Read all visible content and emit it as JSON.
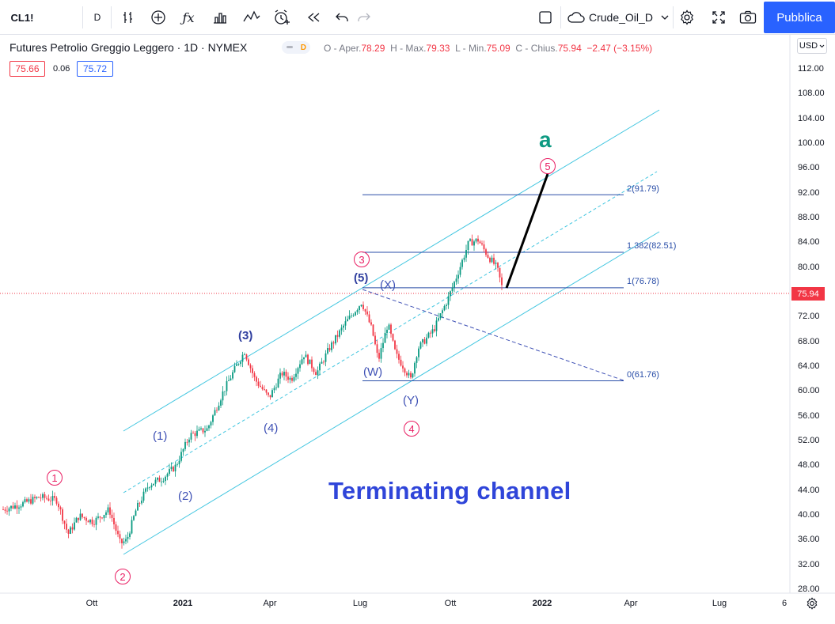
{
  "toolbar": {
    "symbol": "CL1!",
    "interval": "D",
    "layout_name": "Crude_Oil_D",
    "publish_label": "Pubblica",
    "icons": [
      "bar-indicator-icon",
      "add-compare-icon",
      "function-icon",
      "chart-type-icon",
      "indicators-icon",
      "alert-icon",
      "replay-icon",
      "undo-icon",
      "redo-icon",
      "fullscreen-square-icon",
      "cloud-icon",
      "chevron-down-icon",
      "settings-icon",
      "fullscreen-icon",
      "camera-icon"
    ]
  },
  "legend": {
    "title": "Futures Petrolio Greggio Leggero · 1D · NYMEX",
    "badge": "D",
    "o_label": "O - Aper.",
    "o": "78.29",
    "h_label": "H - Max.",
    "h": "79.33",
    "l_label": "L - Min.",
    "l": "75.09",
    "c_label": "C - Chius.",
    "c": "75.94",
    "change": "−2.47 (−3.15%)",
    "bid": "75.66",
    "spread": "0.06",
    "ask": "75.72"
  },
  "price_axis": {
    "currency": "USD",
    "ticks": [
      "112.00",
      "108.00",
      "104.00",
      "100.00",
      "96.00",
      "92.00",
      "88.00",
      "84.00",
      "80.00",
      "76.00",
      "72.00",
      "68.00",
      "64.00",
      "60.00",
      "56.00",
      "52.00",
      "48.00",
      "44.00",
      "40.00",
      "36.00",
      "32.00",
      "28.00"
    ],
    "current_price": "75.94"
  },
  "time_axis": {
    "ticks": [
      "Ott",
      "2021",
      "Apr",
      "Lug",
      "Ott",
      "2022",
      "Apr",
      "Lug",
      "6"
    ]
  },
  "annotations": {
    "fib": [
      {
        "label": "2(91.79)",
        "value": 91.79
      },
      {
        "label": "1.382(82.51)",
        "value": 82.51
      },
      {
        "label": "1(76.78)",
        "value": 76.78
      },
      {
        "label": "0(61.76)",
        "value": 61.76
      }
    ],
    "waves_circled": [
      "1",
      "2",
      "3",
      "4",
      "5"
    ],
    "waves_paren": [
      "(1)",
      "(2)",
      "(3)",
      "(4)",
      "(5)",
      "(W)",
      "(X)",
      "(Y)"
    ],
    "wave_a": "a",
    "caption": "Terminating channel"
  },
  "colors": {
    "up": "#089981",
    "down": "#f23645",
    "channel": "#42c6e0",
    "fib": "#2a4ea8",
    "blue_wave": "#3f51b5",
    "pink_wave": "#e91e63",
    "caption": "#2f45d9",
    "accent": "#2962ff"
  }
}
